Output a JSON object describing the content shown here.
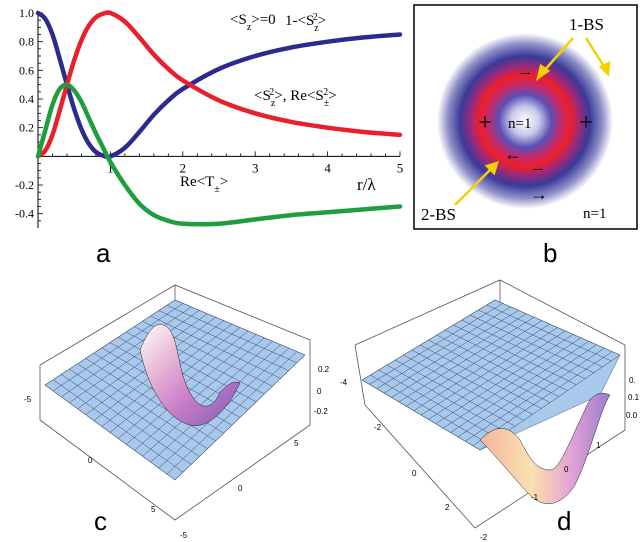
{
  "panel_labels": {
    "a": "a",
    "b": "b",
    "c": "c",
    "d": "d"
  },
  "chart_data": [
    {
      "type": "line",
      "panel": "a",
      "xlabel": "r/λ",
      "ylabel": "",
      "xlim": [
        0,
        5
      ],
      "ylim": [
        -0.5,
        1.0
      ],
      "x_ticks": [
        "1",
        "2",
        "3",
        "4",
        "5"
      ],
      "y_ticks": [
        "1.0",
        "0.8",
        "0.6",
        "0.4",
        "0.2",
        "-0.2",
        "-0.4"
      ],
      "x": [
        0,
        0.1,
        0.2,
        0.3,
        0.4,
        0.5,
        0.6,
        0.7,
        0.8,
        0.9,
        1.0,
        1.2,
        1.4,
        1.6,
        1.8,
        2.0,
        2.5,
        3.0,
        3.5,
        4.0,
        4.5,
        5.0
      ],
      "series": [
        {
          "label": "1-<S_z²>",
          "color": "#2b2b8f",
          "values": [
            1.0,
            0.96,
            0.85,
            0.68,
            0.5,
            0.33,
            0.19,
            0.09,
            0.03,
            0.005,
            0.0,
            0.06,
            0.17,
            0.29,
            0.39,
            0.47,
            0.61,
            0.7,
            0.76,
            0.8,
            0.83,
            0.85
          ]
        },
        {
          "label": "<S_z²>, Re<S_±²>",
          "color": "#e8202a",
          "values": [
            0.0,
            0.04,
            0.15,
            0.32,
            0.5,
            0.67,
            0.81,
            0.91,
            0.97,
            0.995,
            1.0,
            0.94,
            0.83,
            0.71,
            0.61,
            0.53,
            0.39,
            0.3,
            0.24,
            0.2,
            0.17,
            0.15
          ]
        },
        {
          "label": "Re<T_±>",
          "color": "#1e9e3e",
          "values": [
            0.0,
            0.18,
            0.36,
            0.47,
            0.5,
            0.46,
            0.38,
            0.27,
            0.16,
            0.06,
            -0.04,
            -0.2,
            -0.33,
            -0.41,
            -0.45,
            -0.47,
            -0.47,
            -0.44,
            -0.41,
            -0.39,
            -0.37,
            -0.35
          ]
        }
      ],
      "annotations": [
        "<S_z>=0"
      ]
    },
    {
      "type": "heatmap",
      "panel": "b",
      "description_labels": [
        "1-BS",
        "2-BS",
        "n=1",
        "n=1"
      ],
      "signs": [
        "−",
        "+",
        "+",
        "−",
        "←",
        "→"
      ]
    },
    {
      "type": "surface",
      "panel": "c",
      "axis_ticks": [
        "-5",
        "0",
        "5",
        "-5",
        "0",
        "5",
        "0.2",
        "0",
        "-0.2"
      ],
      "extreme_values": {
        "max": 0.3,
        "min": -0.25
      }
    },
    {
      "type": "surface",
      "panel": "d",
      "axis_ticks": [
        "-4",
        "-2",
        "0",
        "2",
        "-2",
        "-1",
        "0",
        "1",
        "0.",
        "0.1",
        "0.0"
      ],
      "extreme_values": {
        "max": 0.2,
        "min": 0.0
      }
    }
  ],
  "text": {
    "sz0": "<S",
    "sz0_sub": "z",
    "sz0_tail": ">=0",
    "one_minus": "1-<S",
    "one_minus_sub": "z",
    "one_minus_sup": "2",
    "one_minus_tail": ">",
    "sz2_a": "<S",
    "sz2_sub": "z",
    "sz2_sup": "2",
    "sz2_mid": ">, Re<S",
    "sz2_sub2": "±",
    "sz2_sup2": "2",
    "sz2_tail": ">",
    "ret_a": "Re<T",
    "ret_sub": "±",
    "ret_tail": ">",
    "bs1": "1-BS",
    "bs2": "2-BS",
    "n1_center": "n=1",
    "n1_corner": "n=1",
    "minus": "−",
    "plus": "+",
    "arrow_left": "←",
    "arrow_right": "→"
  },
  "colors": {
    "blue": "#2b2b8f",
    "red": "#e8202a",
    "green": "#1e9e3e",
    "surface": "#9fc4e8"
  }
}
